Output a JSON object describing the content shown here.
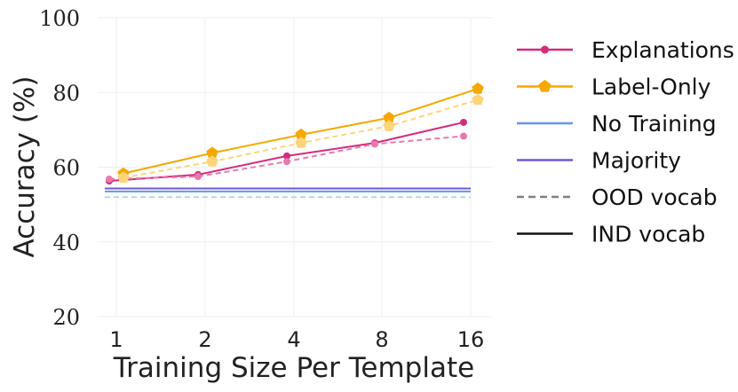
{
  "chart_data": {
    "type": "line",
    "xlabel": "Training Size Per Template",
    "ylabel": "Accuracy (%)",
    "categories": [
      "1",
      "2",
      "4",
      "8",
      "16"
    ],
    "yticks": [
      20,
      40,
      60,
      80,
      100
    ],
    "ylim": [
      20,
      100
    ],
    "grid": true,
    "legend_position": "right",
    "series": [
      {
        "name": "Explanations",
        "vocab": "IND vocab",
        "color": "#d62b7a",
        "marker": "circle",
        "dashed": false,
        "values": [
          56.3,
          58.0,
          63.0,
          66.5,
          72.0
        ]
      },
      {
        "name": "Explanations",
        "vocab": "OOD vocab",
        "color": "#e879ad",
        "marker": "circle",
        "dashed": true,
        "values": [
          56.8,
          57.5,
          61.5,
          66.2,
          68.3
        ]
      },
      {
        "name": "Label-Only",
        "vocab": "IND vocab",
        "color": "#f5a800",
        "marker": "pentagon",
        "dashed": false,
        "values": [
          58.3,
          63.8,
          68.7,
          73.2,
          81.0
        ]
      },
      {
        "name": "Label-Only",
        "vocab": "OOD vocab",
        "color": "#fcd57a",
        "marker": "pentagon",
        "dashed": true,
        "values": [
          57.2,
          61.5,
          66.5,
          71.0,
          78.0
        ]
      },
      {
        "name": "No Training",
        "vocab": "IND vocab",
        "color": "#6495ed",
        "marker": "none",
        "dashed": false,
        "values": [
          53.5,
          53.5,
          53.5,
          53.5,
          53.5
        ]
      },
      {
        "name": "No Training",
        "vocab": "OOD vocab",
        "color": "#add8e6",
        "marker": "none",
        "dashed": true,
        "values": [
          52.0,
          52.0,
          52.0,
          52.0,
          52.0
        ]
      },
      {
        "name": "Majority",
        "vocab": "IND vocab",
        "color": "#7257d8",
        "marker": "none",
        "dashed": false,
        "values": [
          54.3,
          54.3,
          54.3,
          54.3,
          54.3
        ]
      }
    ],
    "legend": [
      {
        "label": "Explanations",
        "color": "#d62b7a",
        "marker": "circle",
        "dashed": false
      },
      {
        "label": "Label-Only",
        "color": "#f5a800",
        "marker": "pentagon",
        "dashed": false
      },
      {
        "label": "No Training",
        "color": "#6495ed",
        "marker": "none",
        "dashed": false
      },
      {
        "label": "Majority",
        "color": "#7257d8",
        "marker": "none",
        "dashed": false
      },
      {
        "label": "OOD vocab",
        "color": "#808080",
        "marker": "none",
        "dashed": true
      },
      {
        "label": "IND vocab",
        "color": "#111111",
        "marker": "none",
        "dashed": false
      }
    ]
  }
}
